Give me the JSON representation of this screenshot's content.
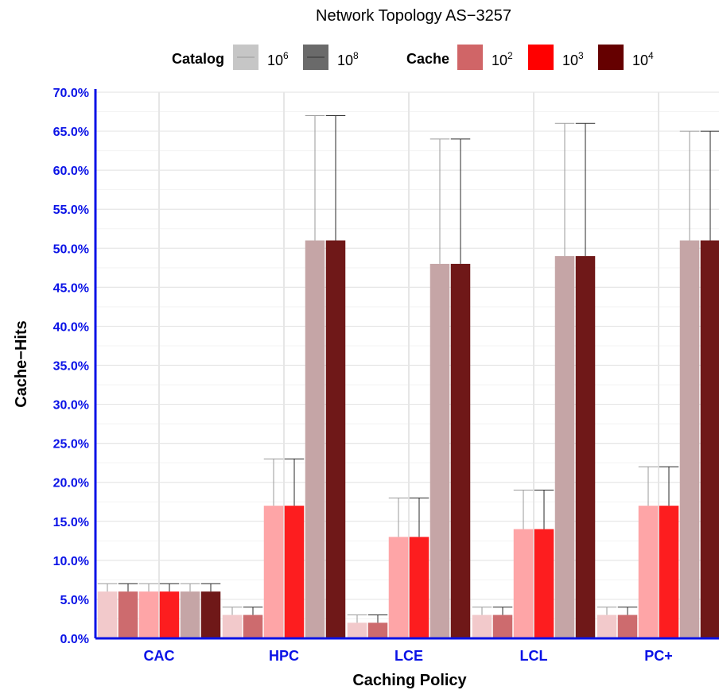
{
  "chart_data": {
    "type": "bar",
    "title": "Network Topology AS−3257",
    "xlabel": "Caching Policy",
    "ylabel": "Cache−Hits",
    "categories": [
      "CAC",
      "HPC",
      "LCE",
      "LCL",
      "PC+"
    ],
    "ylim": [
      0,
      70
    ],
    "yticks": [
      "0.0%",
      "5.0%",
      "10.0%",
      "15.0%",
      "20.0%",
      "25.0%",
      "30.0%",
      "35.0%",
      "40.0%",
      "45.0%",
      "50.0%",
      "55.0%",
      "60.0%",
      "65.0%",
      "70.0%"
    ],
    "grid": true,
    "legend_position": "top",
    "legend": {
      "catalog": {
        "title": "Catalog",
        "entries": [
          {
            "base": "10",
            "exp": "6"
          },
          {
            "base": "10",
            "exp": "8"
          }
        ]
      },
      "cache": {
        "title": "Cache",
        "entries": [
          {
            "base": "10",
            "exp": "2"
          },
          {
            "base": "10",
            "exp": "3"
          },
          {
            "base": "10",
            "exp": "4"
          }
        ]
      }
    },
    "series": [
      {
        "cache": "10^2",
        "catalog": "10^6",
        "color": "#f2c9cb",
        "values": [
          6,
          3,
          2,
          3,
          3
        ],
        "error_upper": [
          7,
          4,
          3,
          4,
          4
        ]
      },
      {
        "cache": "10^2",
        "catalog": "10^8",
        "color": "#cd6b6e",
        "values": [
          6,
          3,
          2,
          3,
          3
        ],
        "error_upper": [
          7,
          4,
          3,
          4,
          4
        ]
      },
      {
        "cache": "10^3",
        "catalog": "10^6",
        "color": "#fea5a7",
        "values": [
          6,
          17,
          13,
          14,
          17
        ],
        "error_upper": [
          7,
          23,
          18,
          19,
          22
        ]
      },
      {
        "cache": "10^3",
        "catalog": "10^8",
        "color": "#fd1d1f",
        "values": [
          6,
          17,
          13,
          14,
          17
        ],
        "error_upper": [
          7,
          23,
          18,
          19,
          22
        ]
      },
      {
        "cache": "10^4",
        "catalog": "10^6",
        "color": "#c5a5a6",
        "values": [
          6,
          51,
          48,
          49,
          51
        ],
        "error_upper": [
          7,
          67,
          64,
          66,
          65
        ]
      },
      {
        "cache": "10^4",
        "catalog": "10^8",
        "color": "#6f1818",
        "values": [
          6,
          51,
          48,
          49,
          51
        ],
        "error_upper": [
          7,
          67,
          64,
          66,
          65
        ]
      }
    ]
  }
}
